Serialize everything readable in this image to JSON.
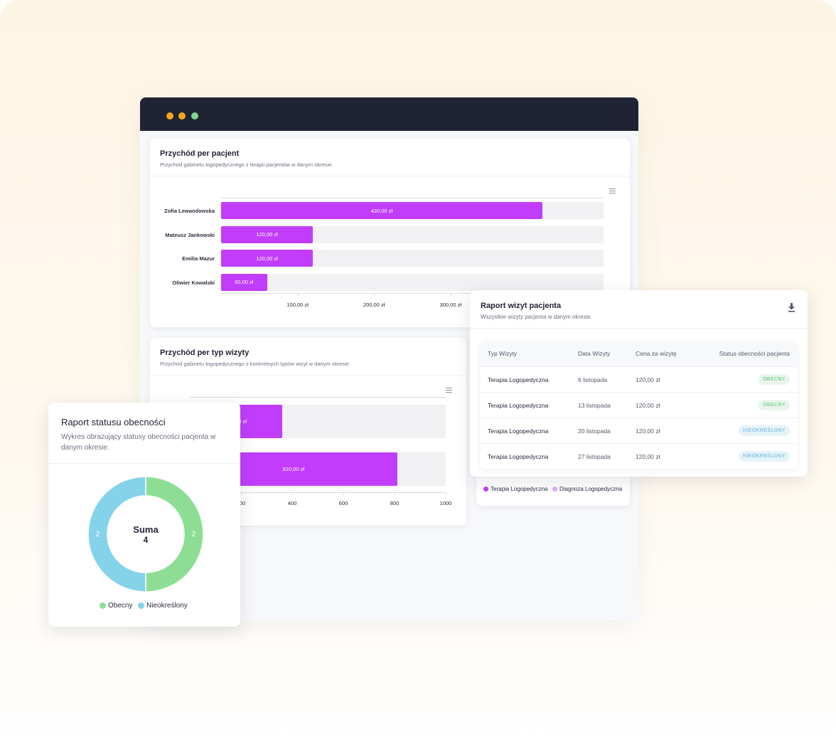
{
  "colors": {
    "browser_bar": "#1f2333",
    "bar": "#c23dfb",
    "bar_light": "#e3a9fb",
    "obecny": "#8dde94",
    "nieokreslony": "#85d3ea"
  },
  "revenue_per_patient": {
    "title": "Przychód per pacjent",
    "subtitle": "Przychód gabinetu logopedycznego z terapii pacjentów w danym okresie.",
    "menu_icon": "hamburger-menu-icon",
    "chart_data": {
      "type": "bar",
      "orientation": "horizontal",
      "categories": [
        "Zofia Lewandowska",
        "Mateusz Jankowski",
        "Emilia Mazur",
        "Oliwier Kowalski"
      ],
      "values": [
        420,
        120,
        120,
        60
      ],
      "value_labels": [
        "420,00 zł",
        "120,00 zł",
        "120,00 zł",
        "60,00 zł"
      ],
      "x_tick_labels": [
        "100,00 zł",
        "200,00 zł",
        "300,00 zł"
      ],
      "xlim": [
        0,
        500
      ]
    }
  },
  "revenue_per_visit_type": {
    "title": "Przychód per typ wizyty",
    "subtitle": "Przychód gabinetu logopedycznego z konkretnych typów wizyt w danym okresie.",
    "menu_icon": "hamburger-menu-icon",
    "chart_data": {
      "type": "bar",
      "orientation": "horizontal",
      "values": [
        360,
        810
      ],
      "value_labels": [
        "360,00 zł",
        "810,00 zł"
      ],
      "x_tick_labels": [
        "200",
        "400",
        "600",
        "800",
        "1000"
      ],
      "xlim": [
        0,
        1000
      ]
    },
    "legend": [
      "Terapia Logopedyczna",
      "Diagnoza Logopedyczna"
    ]
  },
  "visit_report": {
    "title": "Raport wizyt pacjenta",
    "subtitle": "Wszystkie wizyty pacjenta w danym okresie.",
    "download_icon": "download-icon",
    "columns": [
      "Typ Wizyty",
      "Data Wizyty",
      "Cena za wizytę",
      "Status obecności pacjenta"
    ],
    "rows": [
      {
        "type": "Terapia Logopedyczna",
        "date": "6 listopada",
        "price": "120,00 zł",
        "status": "OBECNY"
      },
      {
        "type": "Terapia Logopedyczna",
        "date": "13 listopada",
        "price": "120,00 zł",
        "status": "OBECNY"
      },
      {
        "type": "Terapia Logopedyczna",
        "date": "20 listopada",
        "price": "120,00 zł",
        "status": "NIEOKREŚLONY"
      },
      {
        "type": "Terapia Logopedyczna",
        "date": "27 listopada",
        "price": "120,00 zł",
        "status": "NIEOKREŚLONY"
      }
    ]
  },
  "attendance_report": {
    "title": "Raport statusu obecności",
    "subtitle": "Wykres obrazujący statusy obecności pacjenta w danym okresie.",
    "center_label": "Suma",
    "center_value": "4",
    "chart_data": {
      "type": "pie",
      "donut": true,
      "labels": [
        "Obecny",
        "Nieokreślony"
      ],
      "values": [
        2,
        2
      ],
      "data_labels": [
        "2",
        "2"
      ]
    },
    "legend": [
      "Obecny",
      "Nieokreślony"
    ]
  }
}
